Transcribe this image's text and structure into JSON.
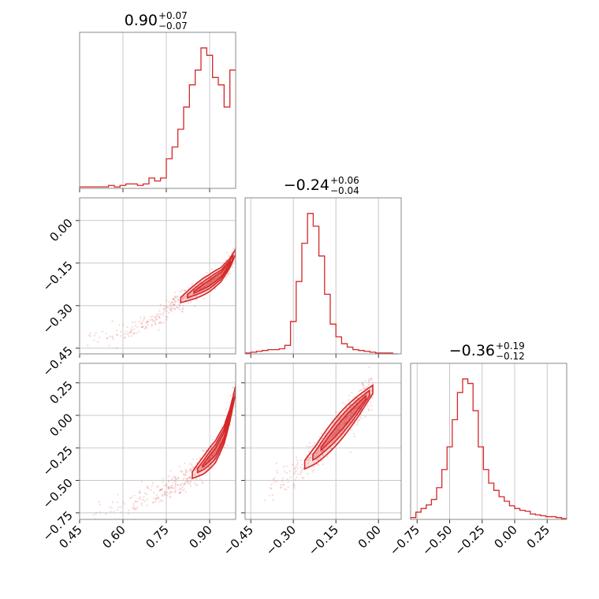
{
  "chart_data": {
    "type": "corner",
    "color": "#d62728",
    "parameters": [
      {
        "title_value": "0.90",
        "title_plus": "+0.07",
        "title_minus": "−0.07",
        "range": [
          0.45,
          0.99
        ],
        "ticks": [
          0.45,
          0.6,
          0.75,
          0.9
        ],
        "tick_labels": [
          "0.45",
          "0.60",
          "0.75",
          "0.90"
        ]
      },
      {
        "title_value": "−0.24",
        "title_plus": "+0.06",
        "title_minus": "−0.04",
        "range": [
          -0.47,
          0.08
        ],
        "ticks": [
          -0.45,
          -0.3,
          -0.15,
          0.0
        ],
        "tick_labels": [
          "−0.45",
          "−0.30",
          "−0.15",
          "0.00"
        ]
      },
      {
        "title_value": "−0.36",
        "title_plus": "+0.19",
        "title_minus": "−0.12",
        "range": [
          -0.8,
          0.4
        ],
        "ticks": [
          -0.75,
          -0.5,
          -0.25,
          0.0,
          0.25
        ],
        "tick_labels": [
          "−0.75",
          "−0.50",
          "−0.25",
          "0.00",
          "0.25"
        ]
      }
    ],
    "histograms": [
      {
        "param": 0,
        "bin_centers": [
          0.46,
          0.48,
          0.5,
          0.52,
          0.54,
          0.56,
          0.58,
          0.6,
          0.62,
          0.64,
          0.66,
          0.68,
          0.7,
          0.72,
          0.74,
          0.76,
          0.78,
          0.8,
          0.82,
          0.84,
          0.86,
          0.88,
          0.9,
          0.92,
          0.94,
          0.96,
          0.98
        ],
        "counts": [
          1,
          1,
          1,
          1,
          1,
          2,
          1,
          2,
          3,
          3,
          2,
          3,
          7,
          5,
          7,
          20,
          28,
          40,
          55,
          70,
          80,
          95,
          90,
          75,
          70,
          55,
          80
        ]
      },
      {
        "param": 1,
        "bin_centers": [
          -0.46,
          -0.44,
          -0.42,
          -0.4,
          -0.38,
          -0.36,
          -0.34,
          -0.32,
          -0.3,
          -0.28,
          -0.26,
          -0.24,
          -0.22,
          -0.2,
          -0.18,
          -0.16,
          -0.14,
          -0.12,
          -0.1,
          -0.08,
          -0.06,
          -0.04,
          -0.02,
          0.0,
          0.02,
          0.04,
          0.06
        ],
        "counts": [
          1,
          2,
          3,
          4,
          5,
          5,
          6,
          10,
          38,
          85,
          130,
          165,
          150,
          115,
          70,
          35,
          20,
          12,
          8,
          5,
          4,
          3,
          2,
          1,
          1,
          1,
          0
        ]
      },
      {
        "param": 2,
        "bin_centers": [
          -0.78,
          -0.74,
          -0.7,
          -0.66,
          -0.62,
          -0.58,
          -0.54,
          -0.5,
          -0.46,
          -0.42,
          -0.38,
          -0.34,
          -0.3,
          -0.26,
          -0.22,
          -0.18,
          -0.14,
          -0.1,
          -0.06,
          -0.02,
          0.02,
          0.06,
          0.1,
          0.14,
          0.18,
          0.22,
          0.26,
          0.3,
          0.34,
          0.38
        ],
        "counts": [
          2,
          8,
          12,
          16,
          22,
          35,
          55,
          80,
          110,
          140,
          155,
          150,
          120,
          80,
          55,
          40,
          32,
          25,
          20,
          15,
          12,
          10,
          9,
          6,
          5,
          4,
          3,
          3,
          2,
          1
        ]
      }
    ],
    "joint_panels": [
      {
        "x_param": 0,
        "y_param": 1,
        "ridge_x": [
          0.44,
          0.55,
          0.65,
          0.75,
          0.8,
          0.85,
          0.9,
          0.94,
          0.97,
          0.99
        ],
        "ridge_y": [
          -0.43,
          -0.41,
          -0.38,
          -0.32,
          -0.28,
          -0.25,
          -0.22,
          -0.19,
          -0.15,
          -0.11
        ],
        "contour_halfwidths": [
          0.055,
          0.035,
          0.018
        ]
      },
      {
        "x_param": 0,
        "y_param": 2,
        "ridge_x": [
          0.47,
          0.6,
          0.7,
          0.78,
          0.84,
          0.88,
          0.92,
          0.95,
          0.97,
          0.99
        ],
        "ridge_y": [
          -0.78,
          -0.7,
          -0.62,
          -0.54,
          -0.46,
          -0.38,
          -0.28,
          -0.15,
          0.0,
          0.2
        ],
        "contour_halfwidths": [
          0.07,
          0.045,
          0.022
        ]
      },
      {
        "x_param": 1,
        "y_param": 2,
        "ridge_x": [
          -0.45,
          -0.4,
          -0.35,
          -0.3,
          -0.26,
          -0.22,
          -0.18,
          -0.14,
          -0.1,
          -0.06,
          -0.02
        ],
        "ridge_y": [
          -0.7,
          -0.62,
          -0.54,
          -0.46,
          -0.38,
          -0.3,
          -0.2,
          -0.1,
          0.0,
          0.1,
          0.2
        ],
        "contour_halfwidths": [
          0.09,
          0.06,
          0.03
        ]
      }
    ]
  }
}
